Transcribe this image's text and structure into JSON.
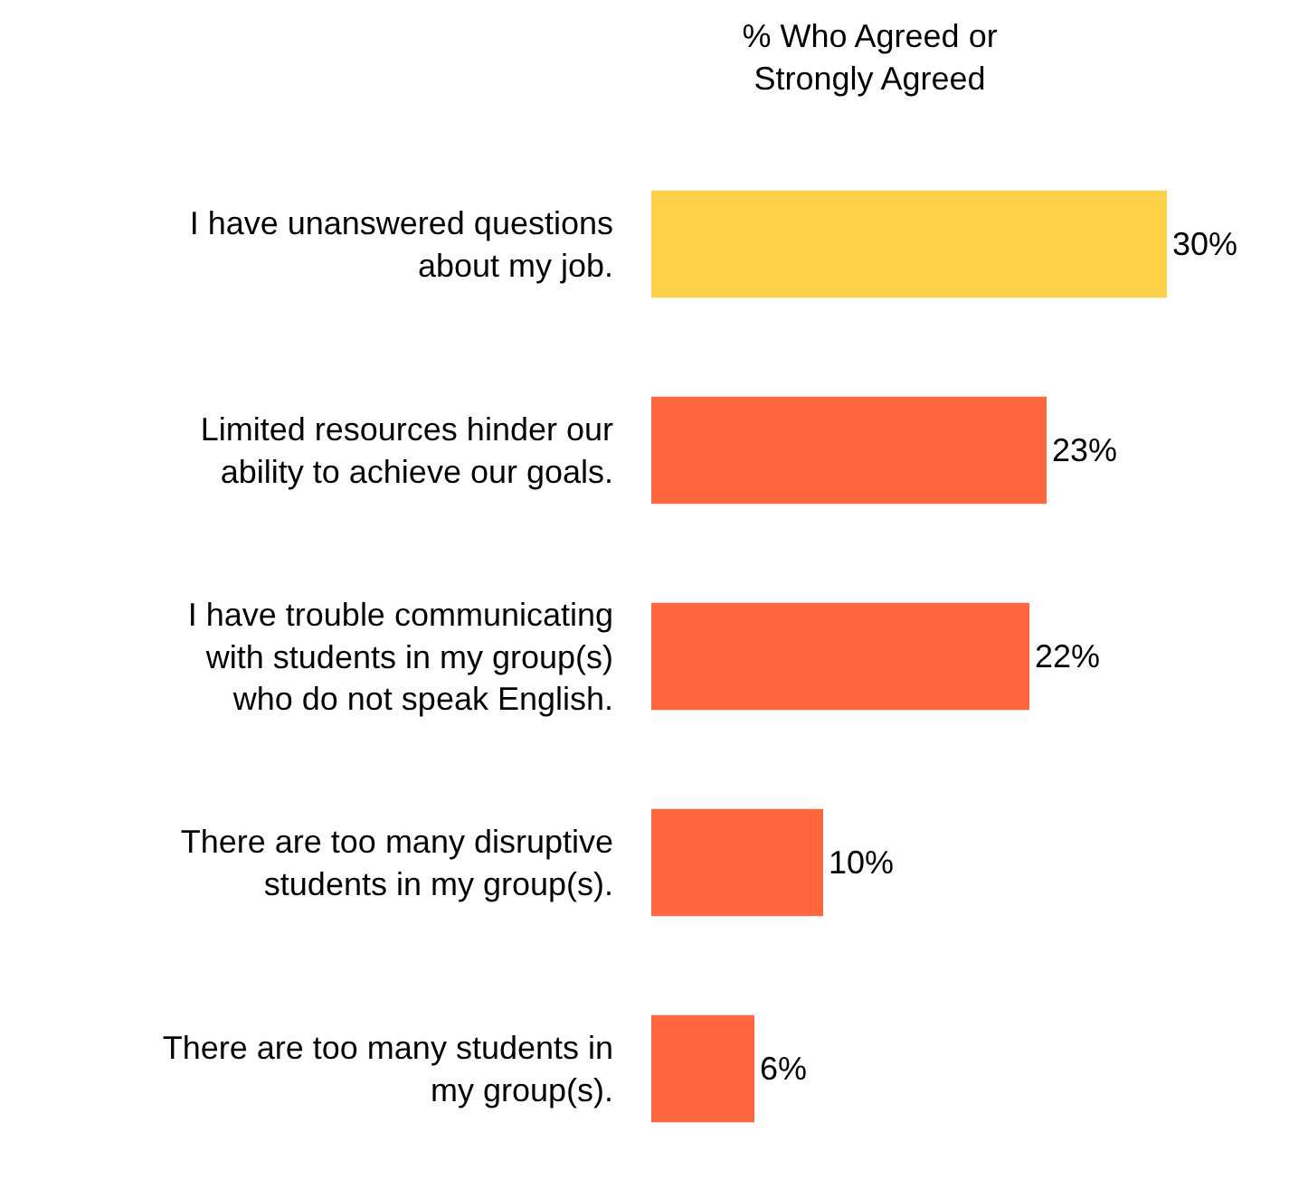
{
  "chart_data": {
    "type": "bar",
    "orientation": "horizontal",
    "title": "% Who Agreed or Strongly Agreed",
    "categories": [
      "I have unanswered questions about my job.",
      "Limited resources hinder our ability to achieve our goals.",
      "I have trouble communicating with students in my group(s) who do not speak English.",
      "There are too many disruptive students in my group(s).",
      "There are too many students in my group(s)."
    ],
    "values": [
      30,
      23,
      22,
      10,
      6
    ],
    "value_labels": [
      "30%",
      "23%",
      "22%",
      "10%",
      "6%"
    ],
    "colors": [
      "#fdd04a",
      "#ff653f",
      "#ff653f",
      "#ff653f",
      "#ff653f"
    ],
    "xlim": [
      0,
      30
    ],
    "tick_labels": "y",
    "grid": false
  }
}
